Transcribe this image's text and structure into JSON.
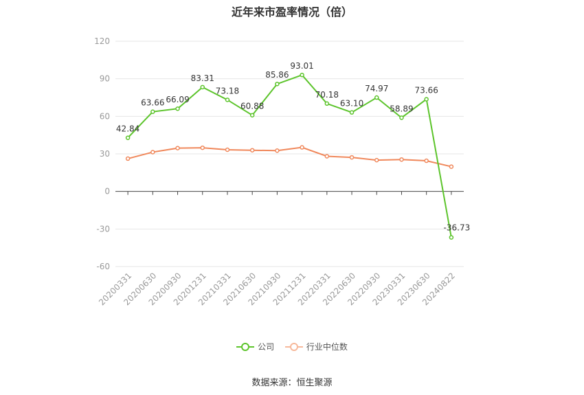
{
  "chart_data": {
    "type": "line",
    "title": "近年来市盈率情况（倍）",
    "categories": [
      "20200331",
      "20200630",
      "20200930",
      "20201231",
      "20210331",
      "20210630",
      "20210930",
      "20211231",
      "20220331",
      "20220630",
      "20220930",
      "20230331",
      "20230630",
      "20240822"
    ],
    "series": [
      {
        "name": "公司",
        "color": "#5cc42b",
        "values": [
          42.84,
          63.66,
          66.09,
          83.31,
          73.18,
          60.88,
          85.86,
          93.01,
          70.18,
          63.1,
          74.97,
          58.89,
          73.66,
          -36.73
        ],
        "labels": [
          "42.84",
          "63.66",
          "66.09",
          "83.31",
          "73.18",
          "60.88",
          "85.86",
          "93.01",
          "70.18",
          "63.10",
          "74.97",
          "58.89",
          "73.66",
          "-36.73"
        ]
      },
      {
        "name": "行业中位数",
        "color": "#f0875a",
        "values": [
          26.2,
          31.4,
          34.6,
          34.9,
          33.3,
          32.9,
          32.6,
          35.2,
          28.1,
          27.2,
          25.0,
          25.5,
          24.5,
          19.8
        ]
      }
    ],
    "ylim": [
      -60,
      120
    ],
    "yticks": [
      -60,
      -30,
      0,
      30,
      60,
      90,
      120
    ],
    "grid": true,
    "legend": "bottom"
  },
  "source": "数据来源：恒生聚源"
}
